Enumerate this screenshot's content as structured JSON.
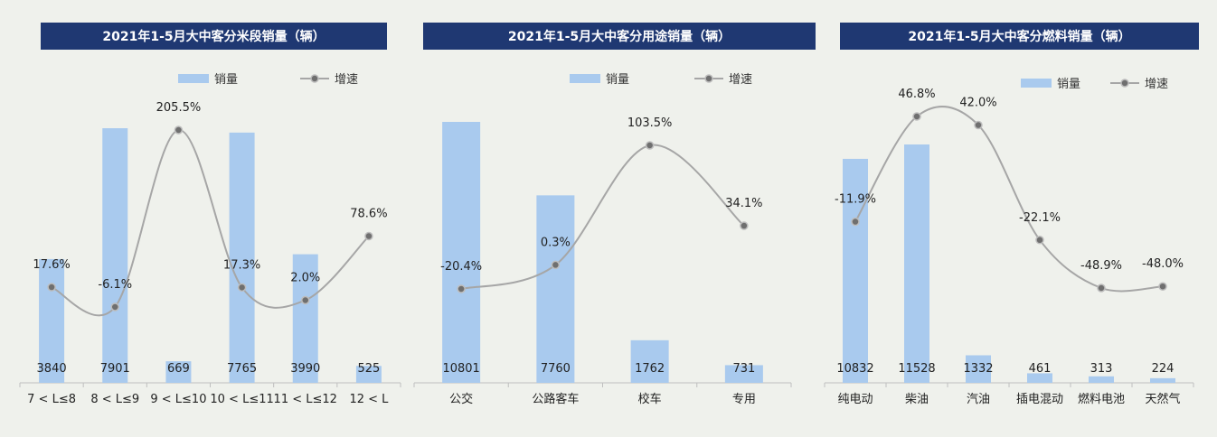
{
  "legend": {
    "bar_label": "销量",
    "line_label": "增速"
  },
  "colors": {
    "bar": "#a9caee",
    "line": "#a6a6a6",
    "marker": "#6f6f6f",
    "title_bg": "#1f3872",
    "axis": "#bfbfbf"
  },
  "chart_data": [
    {
      "type": "bar",
      "title": "2021年1-5月大中客分米段销量（辆）",
      "categories": [
        "7 < L≤8",
        "8 < L≤9",
        "9 < L≤10",
        "10 < L≤11",
        "11 < L≤12",
        "12 < L"
      ],
      "series": [
        {
          "name": "销量",
          "type": "bar",
          "values": [
            3840,
            7901,
            669,
            7765,
            3990,
            525
          ],
          "labels": [
            "3840",
            "7901",
            "669",
            "7765",
            "3990",
            "525"
          ]
        },
        {
          "name": "增速",
          "type": "line",
          "values": [
            17.6,
            -6.1,
            205.5,
            17.3,
            2.0,
            78.6
          ],
          "labels": [
            "17.6%",
            "-6.1%",
            "205.5%",
            "17.3%",
            "2.0%",
            "78.6%"
          ]
        }
      ],
      "legend_position": "top"
    },
    {
      "type": "bar",
      "title": "2021年1-5月大中客分用途销量（辆）",
      "categories": [
        "公交",
        "公路客车",
        "校车",
        "专用"
      ],
      "series": [
        {
          "name": "销量",
          "type": "bar",
          "values": [
            10801,
            7760,
            1762,
            731
          ],
          "labels": [
            "10801",
            "7760",
            "1762",
            "731"
          ]
        },
        {
          "name": "增速",
          "type": "line",
          "values": [
            -20.4,
            0.3,
            103.5,
            34.1
          ],
          "labels": [
            "-20.4%",
            "0.3%",
            "103.5%",
            "34.1%"
          ]
        }
      ],
      "legend_position": "top"
    },
    {
      "type": "bar",
      "title": "2021年1-5月大中客分燃料销量（辆）",
      "categories": [
        "纯电动",
        "柴油",
        "汽油",
        "插电混动",
        "燃料电池",
        "天然气"
      ],
      "series": [
        {
          "name": "销量",
          "type": "bar",
          "values": [
            10832,
            11528,
            1332,
            461,
            313,
            224
          ],
          "labels": [
            "10832",
            "11528",
            "1332",
            "461",
            "313",
            "224"
          ]
        },
        {
          "name": "增速",
          "type": "line",
          "values": [
            -11.9,
            46.8,
            42.0,
            -22.1,
            -48.9,
            -48.0
          ],
          "labels": [
            "-11.9%",
            "46.8%",
            "42.0%",
            "-22.1%",
            "-48.9%",
            "-48.0%"
          ]
        }
      ],
      "legend_position": "top"
    }
  ]
}
